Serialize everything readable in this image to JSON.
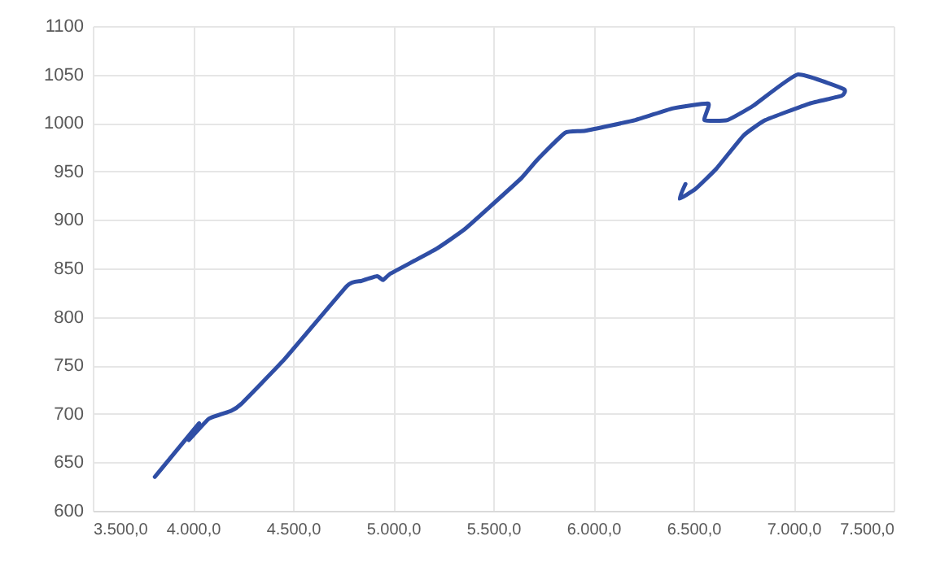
{
  "chart_data": {
    "type": "line",
    "x": [
      3810,
      4030,
      3980,
      4080,
      4190,
      4240,
      4460,
      4770,
      4840,
      4920,
      4950,
      4990,
      5215,
      5355,
      5475,
      5640,
      5720,
      5860,
      5960,
      6210,
      6395,
      6575,
      6555,
      6670,
      6800,
      7020,
      7250,
      7240,
      7080,
      6860,
      6750,
      6615,
      6510,
      6430,
      6460
    ],
    "series": [
      {
        "color": "#2f4ea5",
        "values": [
          635,
          690,
          673,
          695,
          703,
          710,
          757,
          832,
          837,
          842,
          838,
          845,
          870,
          890,
          912,
          943,
          962,
          990,
          992,
          1003,
          1015,
          1020,
          1003,
          1003,
          1018,
          1050,
          1035,
          1028,
          1020,
          1003,
          987,
          953,
          932,
          922,
          937
        ]
      }
    ],
    "xlim": [
      3500,
      7500
    ],
    "xticks": [
      {
        "value": 3500,
        "label": "3.500,0"
      },
      {
        "value": 4000,
        "label": "4.000,0"
      },
      {
        "value": 4500,
        "label": "4.500,0"
      },
      {
        "value": 5000,
        "label": "5.000,0"
      },
      {
        "value": 5500,
        "label": "5.500,0"
      },
      {
        "value": 6000,
        "label": "6.000,0"
      },
      {
        "value": 6500,
        "label": "6.500,0"
      },
      {
        "value": 7000,
        "label": "7.000,0"
      },
      {
        "value": 7500,
        "label": "7.500,0"
      }
    ],
    "ylim": [
      600,
      1100
    ],
    "yticks": [
      600,
      650,
      700,
      750,
      800,
      850,
      900,
      950,
      1000,
      1050,
      1100
    ],
    "grid": true,
    "marker": "none",
    "line_style": "solid"
  }
}
